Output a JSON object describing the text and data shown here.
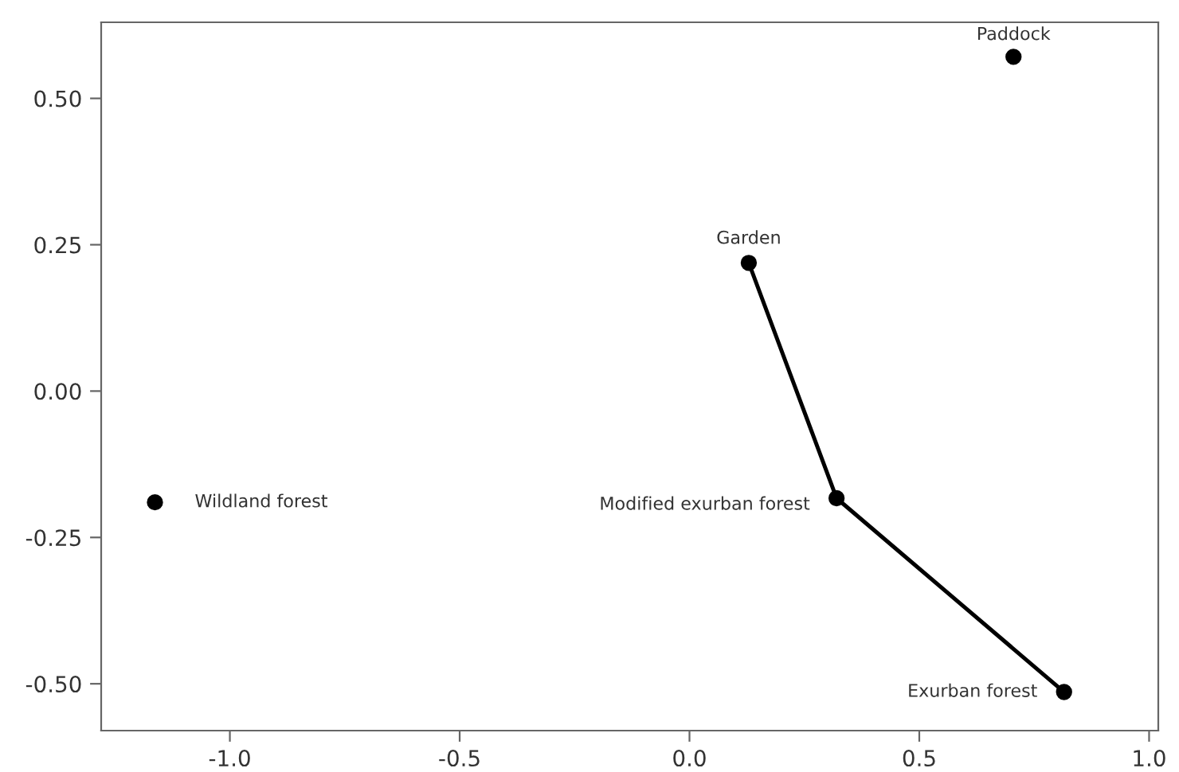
{
  "chart_data": {
    "type": "scatter",
    "series": [
      {
        "color": "#000000",
        "marker": "circle",
        "x": [
          0.705,
          0.129,
          0.32,
          0.815,
          -1.163
        ],
        "values": [
          0.571,
          0.219,
          -0.183,
          -0.514,
          -0.19
        ]
      },
      {
        "type": "line",
        "color": "#000000",
        "marker": "none",
        "line_style": "solid",
        "x": [
          0.129,
          0.32,
          0.815
        ],
        "values": [
          0.219,
          -0.183,
          -0.514
        ]
      }
    ],
    "annotations": [
      {
        "text": "Paddock",
        "x": 0.705,
        "y": 0.571
      },
      {
        "text": "Garden",
        "x": 0.129,
        "y": 0.219
      },
      {
        "text": "Modified exurban forest",
        "x": 0.32,
        "y": -0.183
      },
      {
        "text": "Exurban forest",
        "x": 0.815,
        "y": -0.514
      },
      {
        "text": "Wildland forest",
        "x": -1.163,
        "y": -0.19
      }
    ],
    "xlim": [
      -1.28,
      1.02
    ],
    "ylim": [
      -0.58,
      0.63
    ],
    "xticks": [
      {
        "value": -1.0,
        "label": "-1.0"
      },
      {
        "value": -0.5,
        "label": "-0.5"
      },
      {
        "value": 0.0,
        "label": "0.0"
      },
      {
        "value": 0.5,
        "label": "0.5"
      },
      {
        "value": 1.0,
        "label": "1.0"
      }
    ],
    "yticks": [
      {
        "value": 0.5,
        "label": "0.50"
      },
      {
        "value": 0.25,
        "label": "0.25"
      },
      {
        "value": 0.0,
        "label": "0.00"
      },
      {
        "value": -0.25,
        "label": "-0.25"
      },
      {
        "value": -0.5,
        "label": "-0.50"
      }
    ],
    "grid": false,
    "legend": false
  }
}
